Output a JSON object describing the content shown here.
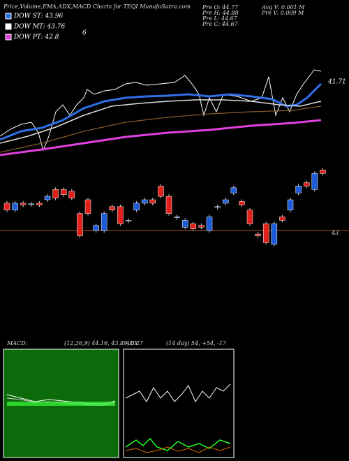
{
  "chart_data": {
    "type": "candlestick",
    "title": "Price,Volume,EMA,ADX,MACD Charts for TEQI MunafaSutra.com",
    "legend": [
      {
        "name": "DOW ST: 43.96",
        "color": "#2f6fe8"
      },
      {
        "name": "DOW MT: 43.76",
        "color": "#ffffff"
      },
      {
        "name": "DOW PT: 42.8",
        "color": "#e040e0"
      }
    ],
    "legend_note": "6",
    "info": [
      "Pre O: 44.77",
      "Pre H: 44.88",
      "Pre L: 44.67",
      "Pre C: 44.67"
    ],
    "info2": [
      "Avg V: 0.001 M",
      "Pre V: 0.009 M"
    ],
    "upper_label": "41.71",
    "ref_value": 43,
    "ref_color": "#b2542a",
    "up_color": "#1e5bd8",
    "down_color": "#e0201b",
    "ylim": [
      42.29,
      44.94
    ],
    "candles": {
      "open": [
        43.8,
        43.6,
        43.8,
        43.78,
        43.8,
        43.9,
        44.2,
        44.2,
        44.15,
        43.5,
        43.9,
        43.0,
        43.0,
        43.7,
        43.7,
        43.3,
        43.6,
        43.8,
        43.9,
        44.3,
        44.0,
        43.4,
        43.1,
        43.2,
        43.15,
        43.0,
        43.7,
        43.8,
        44.1,
        43.85,
        43.6,
        42.9,
        43.2,
        42.6,
        43.4,
        43.6,
        44.1,
        44.4,
        44.2,
        44.77
      ],
      "close": [
        43.6,
        43.8,
        43.75,
        43.78,
        43.75,
        44.0,
        43.95,
        44.05,
        43.95,
        42.85,
        43.5,
        43.15,
        43.5,
        43.6,
        43.2,
        43.3,
        43.8,
        43.9,
        43.8,
        44.0,
        43.5,
        43.4,
        43.3,
        43.05,
        43.1,
        43.4,
        43.7,
        43.9,
        44.25,
        43.75,
        43.2,
        42.85,
        42.65,
        43.2,
        43.3,
        43.9,
        44.3,
        44.3,
        44.67,
        44.67
      ]
    },
    "macd_label": "MACD:",
    "macd_text": "(12,26,9) 44.16, 43.89, 0.27",
    "adx_label": "ADX",
    "adx_text": "(14 day) 54, +54, -17"
  }
}
